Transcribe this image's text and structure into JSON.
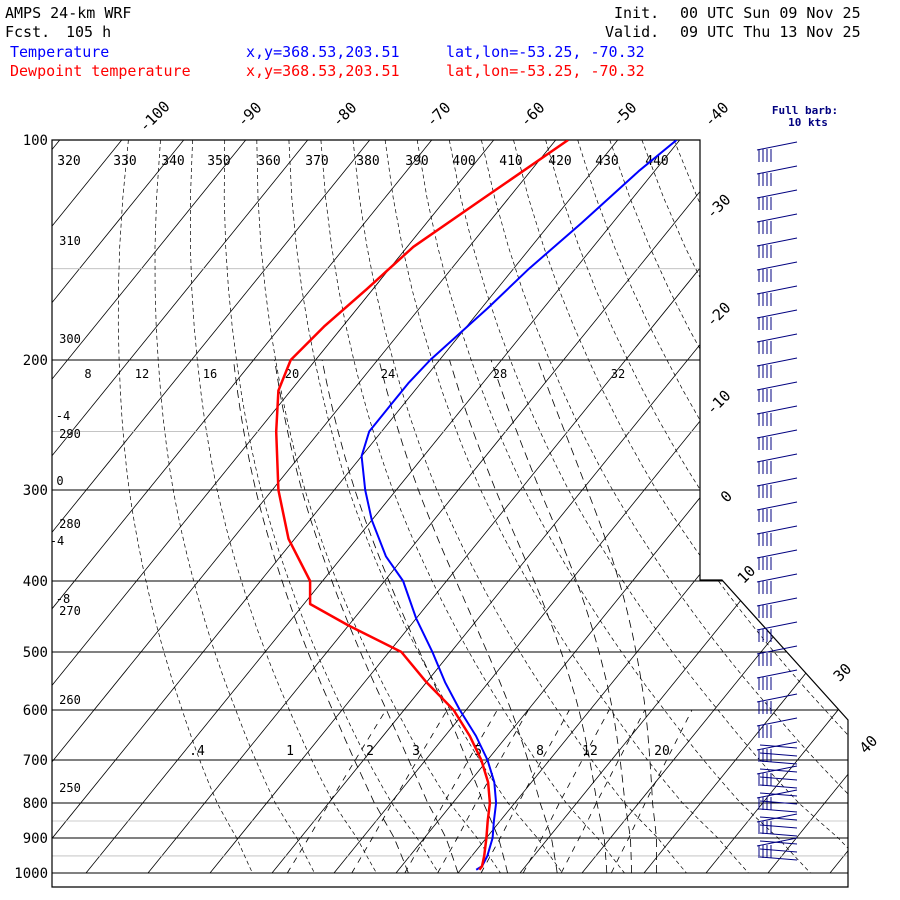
{
  "header": {
    "model": "AMPS 24-km WRF",
    "fcst_label": "Fcst.",
    "fcst_hours": "105 h",
    "init_label": "Init.",
    "init_time": "00 UTC Sun 09 Nov 25",
    "valid_label": "Valid.",
    "valid_time": "09 UTC Thu 13 Nov 25"
  },
  "legend": [
    {
      "name": "Temperature",
      "xy": "x,y=368.53,203.51",
      "latlon": "lat,lon=-53.25, -70.32",
      "color": "#0000ff"
    },
    {
      "name": "Dewpoint temperature",
      "xy": "x,y=368.53,203.51",
      "latlon": "lat,lon=-53.25, -70.32",
      "color": "#ff0000"
    }
  ],
  "barb_key": {
    "line1": "Full barb:",
    "line2": "10 kts"
  },
  "chart_data": {
    "type": "line",
    "diagram": "skew-T log-P",
    "pressure_levels": [
      100,
      200,
      300,
      400,
      500,
      600,
      700,
      800,
      900,
      1000
    ],
    "pressure_tick_labels": [
      "100",
      "200",
      "300",
      "400",
      "500",
      "600",
      "700",
      "800",
      "900",
      "1000"
    ],
    "ylim": [
      1000,
      100
    ],
    "isotherm_labels_top": [
      "-100",
      "-90",
      "-80",
      "-70",
      "-60",
      "-50",
      "-40"
    ],
    "isotherm_labels_right": [
      "-30",
      "-20",
      "-10",
      "0",
      "10"
    ],
    "isotherm_labels_left": [
      "-4",
      "0",
      "-4",
      "-8"
    ],
    "theta_labels_top": [
      "320",
      "330",
      "340",
      "350",
      "360",
      "370",
      "380",
      "390",
      "400",
      "410",
      "420",
      "430",
      "440"
    ],
    "theta_labels_left": [
      "310",
      "300",
      "290",
      "280",
      "270",
      "260",
      "250"
    ],
    "theta_e_labels_200": [
      "8",
      "12",
      "16",
      "20",
      "24",
      "28",
      "32"
    ],
    "mixing_ratio_labels": [
      ".4",
      "1",
      "2",
      "3",
      "5",
      "8",
      "12",
      "20"
    ],
    "wind_speed_labels": [
      "30",
      "40"
    ],
    "series": [
      {
        "name": "Temperature",
        "color": "#0000ff",
        "points": [
          [
            100,
            -60.5
          ],
          [
            110,
            -62.5
          ],
          [
            130,
            -65
          ],
          [
            150,
            -67.5
          ],
          [
            170,
            -69
          ],
          [
            200,
            -71.5
          ],
          [
            215,
            -72
          ],
          [
            230,
            -72
          ],
          [
            250,
            -72
          ],
          [
            270,
            -70
          ],
          [
            300,
            -65
          ],
          [
            330,
            -60
          ],
          [
            370,
            -53
          ],
          [
            400,
            -47
          ],
          [
            450,
            -40
          ],
          [
            500,
            -33
          ],
          [
            550,
            -27
          ],
          [
            600,
            -21
          ],
          [
            650,
            -15
          ],
          [
            700,
            -10
          ],
          [
            750,
            -6
          ],
          [
            800,
            -3
          ],
          [
            850,
            -1
          ],
          [
            900,
            1
          ],
          [
            950,
            2.5
          ],
          [
            980,
            3
          ],
          [
            990,
            2.5
          ]
        ]
      },
      {
        "name": "Dewpoint temperature",
        "color": "#ff0000",
        "points": [
          [
            100,
            -78
          ],
          [
            120,
            -84
          ],
          [
            140,
            -89
          ],
          [
            160,
            -91
          ],
          [
            180,
            -93
          ],
          [
            200,
            -94
          ],
          [
            220,
            -92
          ],
          [
            250,
            -87
          ],
          [
            300,
            -79
          ],
          [
            350,
            -71
          ],
          [
            400,
            -62
          ],
          [
            430,
            -59
          ],
          [
            460,
            -50
          ],
          [
            500,
            -38
          ],
          [
            550,
            -30
          ],
          [
            600,
            -22
          ],
          [
            650,
            -16
          ],
          [
            700,
            -11
          ],
          [
            750,
            -7
          ],
          [
            800,
            -4
          ],
          [
            850,
            -2
          ],
          [
            900,
            0
          ],
          [
            950,
            2
          ],
          [
            980,
            3
          ],
          [
            990,
            3
          ]
        ]
      }
    ],
    "grid": true
  }
}
